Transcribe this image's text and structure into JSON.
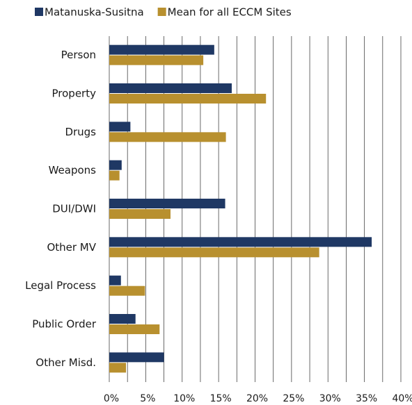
{
  "chart_data": {
    "type": "barh",
    "categories": [
      "Person",
      "Property",
      "Drugs",
      "Weapons",
      "DUI/DWI",
      "Other MV",
      "Legal Process",
      "Public Order",
      "Other Misd."
    ],
    "series": [
      {
        "name": "Matanuska-Susitna",
        "color": "#1f3864",
        "values": [
          14.4,
          16.8,
          2.9,
          1.7,
          15.9,
          36.0,
          1.6,
          3.6,
          7.5
        ]
      },
      {
        "name": "Mean for all ECCM Sites",
        "color": "#b8902f",
        "values": [
          12.9,
          21.5,
          16.0,
          1.4,
          8.4,
          28.8,
          4.9,
          6.9,
          2.3
        ]
      }
    ],
    "xlim": [
      0,
      40
    ],
    "xticks": [
      {
        "value": 0,
        "label": "0%"
      },
      {
        "value": 5,
        "label": "5%"
      },
      {
        "value": 10,
        "label": "10%"
      },
      {
        "value": 15,
        "label": "15%"
      },
      {
        "value": 20,
        "label": "20%"
      },
      {
        "value": 25,
        "label": "25%"
      },
      {
        "value": 30,
        "label": "30%"
      },
      {
        "value": 35,
        "label": "35%"
      },
      {
        "value": 40,
        "label": "40%"
      }
    ],
    "xminorgrid": [
      2.5,
      7.5,
      12.5,
      17.5,
      22.5,
      27.5,
      32.5,
      37.5
    ],
    "grid": true,
    "legend": "top"
  }
}
